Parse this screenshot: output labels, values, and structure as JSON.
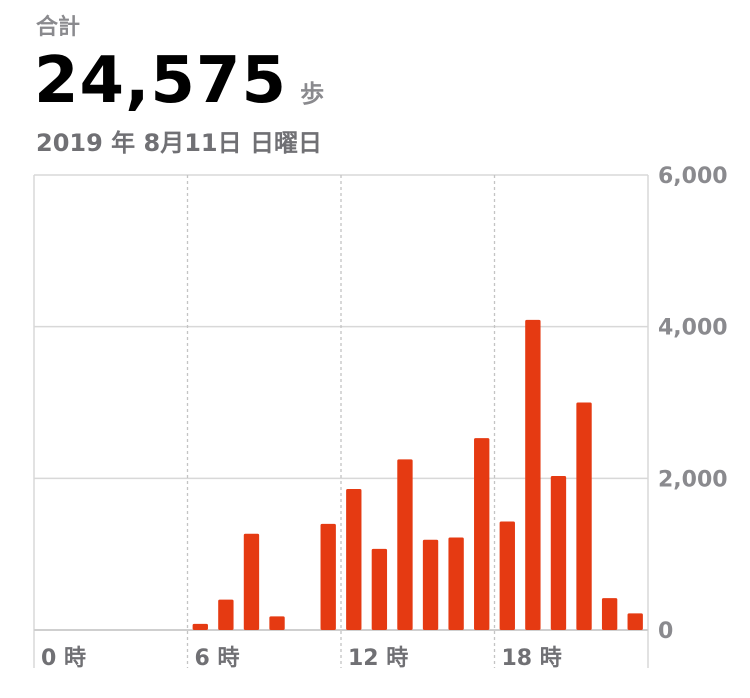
{
  "summary": {
    "label": "合計",
    "total": "24,575",
    "unit": "歩",
    "date": "2019 年 8月11日 日曜日"
  },
  "colors": {
    "bar": "#e53a12",
    "gridline": "#d8d8d8",
    "axis_text": "#8a8a8e"
  },
  "chart_data": {
    "type": "bar",
    "title": "",
    "xlabel": "",
    "ylabel": "",
    "x": [
      0,
      1,
      2,
      3,
      4,
      5,
      6,
      7,
      8,
      9,
      10,
      11,
      12,
      13,
      14,
      15,
      16,
      17,
      18,
      19,
      20,
      21,
      22,
      23
    ],
    "values": [
      0,
      0,
      0,
      0,
      0,
      0,
      80,
      400,
      1270,
      180,
      0,
      1400,
      1860,
      1070,
      2250,
      1190,
      1220,
      2530,
      1430,
      4090,
      2030,
      3000,
      420,
      220
    ],
    "xtick_values": [
      0,
      6,
      12,
      18
    ],
    "xtick_labels": [
      "0 時",
      "6 時",
      "12 時",
      "18 時"
    ],
    "ytick_values": [
      0,
      2000,
      4000,
      6000
    ],
    "ytick_labels": [
      "0",
      "2,000",
      "4,000",
      "6,000"
    ],
    "ylim": [
      0,
      6000
    ],
    "xlim": [
      0,
      24
    ],
    "grid": true
  }
}
